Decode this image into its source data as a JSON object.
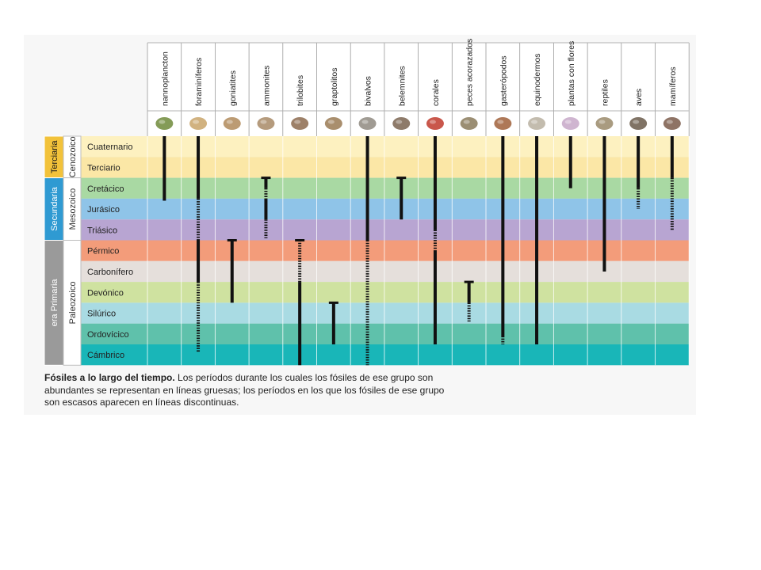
{
  "groups": [
    "nannoplancton",
    "foraminíferos",
    "goniatites",
    "ammonites",
    "trilobites",
    "graptolitos",
    "bivalvos",
    "belemnites",
    "corales",
    "peces acorazados",
    "gasterópodos",
    "equinodermos",
    "plantas con flores",
    "reptiles",
    "aves",
    "mamíferos"
  ],
  "icons": [
    "nannoplankton-icon",
    "foraminifera-icon",
    "goniatite-icon",
    "ammonite-icon",
    "trilobite-icon",
    "graptolite-icon",
    "bivalve-icon",
    "belemnite-icon",
    "coral-icon",
    "armored-fish-icon",
    "gastropod-icon",
    "echinoderm-icon",
    "flowering-plant-icon",
    "reptile-icon",
    "bird-icon",
    "mammal-icon"
  ],
  "periods": [
    {
      "name": "Cuaternario",
      "color": "#fdf1c0"
    },
    {
      "name": "Terciario",
      "color": "#fbe7a6"
    },
    {
      "name": "Cretácico",
      "color": "#a9d9a3"
    },
    {
      "name": "Jurásico",
      "color": "#8fc4e8"
    },
    {
      "name": "Triásico",
      "color": "#b8a5d2"
    },
    {
      "name": "Pérmico",
      "color": "#f39c7a"
    },
    {
      "name": "Carbonífero",
      "color": "#e5dfdb"
    },
    {
      "name": "Devónico",
      "color": "#cfe2a0"
    },
    {
      "name": "Silúrico",
      "color": "#a9dbe3"
    },
    {
      "name": "Ordovícico",
      "color": "#5fc1ab"
    },
    {
      "name": "Cámbrico",
      "color": "#19b6b8"
    }
  ],
  "eras": [
    {
      "name": "Terciaria",
      "from": 0,
      "to": 1,
      "color": "#f2c23a",
      "text_color": "#1a1a1a"
    },
    {
      "name": "Secundaria",
      "from": 2,
      "to": 4,
      "color": "#2f9ad2",
      "text_color": "#ffffff"
    },
    {
      "name": "era Primaria",
      "from": 5,
      "to": 10,
      "color": "#9a9a9a",
      "text_color": "#ffffff"
    }
  ],
  "subeons": [
    {
      "name": "Cenozoico",
      "from": 0,
      "to": 1
    },
    {
      "name": "Mesozoico",
      "from": 2,
      "to": 4
    },
    {
      "name": "Paleozoico",
      "from": 5,
      "to": 10
    }
  ],
  "ranges": [
    {
      "group": 0,
      "segments": [
        {
          "from": 0,
          "to": 3.1,
          "style": "solid"
        }
      ]
    },
    {
      "group": 1,
      "segments": [
        {
          "from": 0,
          "to": 3,
          "style": "solid"
        },
        {
          "from": 3,
          "to": 5,
          "style": "dashed"
        },
        {
          "from": 5,
          "to": 7,
          "style": "solid"
        },
        {
          "from": 7,
          "to": 10.4,
          "style": "dashed"
        }
      ]
    },
    {
      "group": 2,
      "segments": [
        {
          "from": 5,
          "to": 8,
          "style": "solid",
          "cap": true
        }
      ]
    },
    {
      "group": 3,
      "segments": [
        {
          "from": 2,
          "to": 2.5,
          "style": "solid",
          "cap": true
        },
        {
          "from": 2.5,
          "to": 3,
          "style": "dashed"
        },
        {
          "from": 3,
          "to": 4,
          "style": "solid"
        },
        {
          "from": 4,
          "to": 4.9,
          "style": "dashed"
        }
      ]
    },
    {
      "group": 4,
      "segments": [
        {
          "from": 5,
          "to": 7,
          "style": "dashed",
          "cap": true
        },
        {
          "from": 7,
          "to": 11,
          "style": "solid"
        }
      ]
    },
    {
      "group": 5,
      "segments": [
        {
          "from": 8,
          "to": 10,
          "style": "solid",
          "cap": true
        }
      ]
    },
    {
      "group": 6,
      "segments": [
        {
          "from": 0,
          "to": 5,
          "style": "solid"
        },
        {
          "from": 5,
          "to": 11,
          "style": "dashed"
        }
      ]
    },
    {
      "group": 7,
      "segments": [
        {
          "from": 2,
          "to": 4,
          "style": "solid",
          "cap": true
        }
      ]
    },
    {
      "group": 8,
      "segments": [
        {
          "from": 0,
          "to": 4.5,
          "style": "solid"
        },
        {
          "from": 4.5,
          "to": 5.5,
          "style": "dashed"
        },
        {
          "from": 5.5,
          "to": 10,
          "style": "solid"
        }
      ]
    },
    {
      "group": 9,
      "segments": [
        {
          "from": 7,
          "to": 8,
          "style": "solid",
          "cap": true
        },
        {
          "from": 8,
          "to": 8.9,
          "style": "dashed"
        }
      ]
    },
    {
      "group": 10,
      "segments": [
        {
          "from": 0,
          "to": 9.6,
          "style": "solid"
        },
        {
          "from": 9.6,
          "to": 10,
          "style": "dashed"
        }
      ]
    },
    {
      "group": 11,
      "segments": [
        {
          "from": 0,
          "to": 10,
          "style": "solid"
        }
      ]
    },
    {
      "group": 12,
      "segments": [
        {
          "from": 0,
          "to": 2.5,
          "style": "solid"
        }
      ]
    },
    {
      "group": 13,
      "segments": [
        {
          "from": 0,
          "to": 6.5,
          "style": "solid"
        }
      ]
    },
    {
      "group": 14,
      "segments": [
        {
          "from": 0,
          "to": 2.5,
          "style": "solid"
        },
        {
          "from": 2.5,
          "to": 3.5,
          "style": "dashed"
        }
      ]
    },
    {
      "group": 15,
      "segments": [
        {
          "from": 0,
          "to": 2,
          "style": "solid"
        },
        {
          "from": 2,
          "to": 4.5,
          "style": "dashed"
        }
      ]
    }
  ],
  "caption": {
    "bold": "Fósiles a lo largo del tiempo.",
    "text": " Los períodos durante los cuales los fósiles de ese grupo son abundantes se representan en líneas gruesas; los períodos en los que los fósiles de ese grupo son escasos aparecen en líneas discontinuas."
  }
}
